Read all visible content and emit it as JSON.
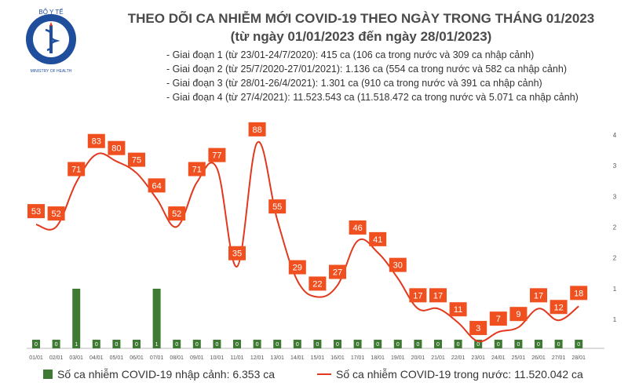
{
  "logo": {
    "text": "BỘ Y TẾ",
    "subtext": "MINISTRY OF HEALTH"
  },
  "header": {
    "title": "THEO DÕI CA NHIỄM MỚI COVID-19 THEO NGÀY TRONG THÁNG 01/2023",
    "subtitle": "(từ ngày 01/01/2023 đến ngày 28/01/2023)"
  },
  "notes": [
    "- Giai đoạn 1 (từ 23/01-24/7/2020): 415 ca (106 ca trong nước và 309 ca nhập cảnh)",
    "- Giai đoạn 2 (từ 25/7/2020-27/01/2021): 1.136 ca (554 ca trong nước và 582 ca nhập cảnh)",
    "- Giai đoạn 3 (từ 28/01-26/4/2021): 1.301 ca (910 ca trong nước và 391 ca nhập cảnh)",
    "- Giai đoạn 4 (từ 27/4/2021): 11.523.543 ca (11.518.472 ca trong nước và 5.071 ca nhập cảnh)"
  ],
  "legend": {
    "bar": "Số ca nhiễm COVID-19 nhập cảnh: 6.353 ca",
    "line": "Số ca nhiễm COVID-19 trong nước: 11.520.042 ca"
  },
  "colors": {
    "bar": "#3f7a34",
    "line": "#e2381e",
    "label_bg": "#f0501f"
  },
  "chart_data": {
    "type": "bar",
    "categories": [
      "01/01",
      "02/01",
      "03/01",
      "04/01",
      "05/01",
      "06/01",
      "07/01",
      "08/01",
      "09/01",
      "10/01",
      "11/01",
      "12/01",
      "13/01",
      "14/01",
      "15/01",
      "16/01",
      "17/01",
      "18/01",
      "19/01",
      "20/01",
      "21/01",
      "22/01",
      "23/01",
      "24/01",
      "25/01",
      "26/01",
      "27/01",
      "28/01"
    ],
    "series": [
      {
        "type": "bar",
        "values": [
          0,
          0,
          1,
          0,
          0,
          0,
          1,
          0,
          0,
          0,
          0,
          0,
          0,
          0,
          0,
          0,
          0,
          0,
          0,
          0,
          0,
          0,
          0,
          0,
          0,
          0,
          0,
          0
        ],
        "data_labels": [
          "0",
          "0",
          "1",
          "0",
          "0",
          "0",
          "1",
          "0",
          "0",
          "0",
          "0",
          "0",
          "0",
          "0",
          "0",
          "0",
          "0",
          "0",
          "0",
          "0",
          "0",
          "0",
          "0",
          "0",
          "0",
          "0",
          "0",
          "0"
        ]
      },
      {
        "type": "line",
        "values": [
          53,
          52,
          71,
          83,
          80,
          75,
          64,
          52,
          71,
          77,
          35,
          88,
          55,
          29,
          22,
          27,
          46,
          41,
          30,
          17,
          17,
          11,
          3,
          7,
          9,
          17,
          12,
          18
        ]
      }
    ],
    "right_axis_ticks": [
      "1",
      "1",
      "2",
      "2",
      "3",
      "3",
      "4"
    ],
    "ylim_bar": [
      0,
      4
    ],
    "ylim_line": [
      0,
      95
    ]
  }
}
